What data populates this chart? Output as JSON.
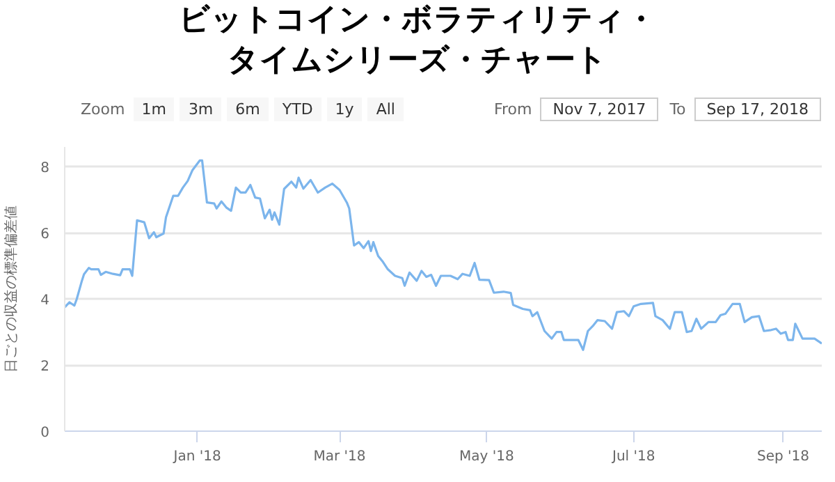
{
  "chart_data": {
    "type": "line",
    "title": "ビットコイン・ボラティリティ・タイムシリーズ・チャート",
    "ylabel": "日ごとの収益の標準偏差値",
    "annotations": [
      "Zoom",
      "1m",
      "3m",
      "6m",
      "YTD",
      "1y",
      "All",
      "From",
      "Nov 7, 2017",
      "To",
      "Sep 17, 2018"
    ],
    "x": [
      "2017-11-07",
      "2017-11-09",
      "2017-11-11",
      "2017-11-12",
      "2017-11-14",
      "2017-11-15",
      "2017-11-17",
      "2017-11-18",
      "2017-11-21",
      "2017-11-22",
      "2017-11-24",
      "2017-11-27",
      "2017-11-30",
      "2017-12-01",
      "2017-12-04",
      "2017-12-05",
      "2017-12-07",
      "2017-12-10",
      "2017-12-12",
      "2017-12-14",
      "2017-12-15",
      "2017-12-18",
      "2017-12-19",
      "2017-12-22",
      "2017-12-24",
      "2017-12-26",
      "2017-12-28",
      "2017-12-30",
      "2018-01-02",
      "2018-01-03",
      "2018-01-05",
      "2018-01-08",
      "2018-01-09",
      "2018-01-11",
      "2018-01-13",
      "2018-01-15",
      "2018-01-17",
      "2018-01-19",
      "2018-01-21",
      "2018-01-23",
      "2018-01-25",
      "2018-01-27",
      "2018-01-29",
      "2018-01-31",
      "2018-02-01",
      "2018-02-02",
      "2018-02-04",
      "2018-02-06",
      "2018-02-09",
      "2018-02-11",
      "2018-02-12",
      "2018-02-14",
      "2018-02-17",
      "2018-02-20",
      "2018-02-23",
      "2018-02-26",
      "2018-03-01",
      "2018-03-04",
      "2018-03-05",
      "2018-03-07",
      "2018-03-09",
      "2018-03-11",
      "2018-03-13",
      "2018-03-14",
      "2018-03-15",
      "2018-03-17",
      "2018-03-19",
      "2018-03-21",
      "2018-03-24",
      "2018-03-27",
      "2018-03-28",
      "2018-03-30",
      "2018-04-02",
      "2018-04-04",
      "2018-04-06",
      "2018-04-08",
      "2018-04-10",
      "2018-04-12",
      "2018-04-16",
      "2018-04-19",
      "2018-04-21",
      "2018-04-24",
      "2018-04-26",
      "2018-04-28",
      "2018-05-02",
      "2018-05-04",
      "2018-05-08",
      "2018-05-11",
      "2018-05-12",
      "2018-05-16",
      "2018-05-19",
      "2018-05-20",
      "2018-05-22",
      "2018-05-25",
      "2018-05-28",
      "2018-05-30",
      "2018-06-01",
      "2018-06-02",
      "2018-06-05",
      "2018-06-08",
      "2018-06-10",
      "2018-06-12",
      "2018-06-14",
      "2018-06-16",
      "2018-06-19",
      "2018-06-22",
      "2018-06-24",
      "2018-06-27",
      "2018-06-29",
      "2018-07-01",
      "2018-07-04",
      "2018-07-09",
      "2018-07-10",
      "2018-07-13",
      "2018-07-16",
      "2018-07-18",
      "2018-07-21",
      "2018-07-23",
      "2018-07-25",
      "2018-07-27",
      "2018-07-29",
      "2018-08-01",
      "2018-08-04",
      "2018-08-06",
      "2018-08-08",
      "2018-08-11",
      "2018-08-14",
      "2018-08-16",
      "2018-08-19",
      "2018-08-22",
      "2018-08-24",
      "2018-08-27",
      "2018-08-29",
      "2018-08-31",
      "2018-09-02",
      "2018-09-03",
      "2018-09-05",
      "2018-09-06",
      "2018-09-09",
      "2018-09-14",
      "2018-09-17"
    ],
    "series": [
      {
        "color": "#7cb5ec",
        "values": [
          3.75,
          3.9,
          3.8,
          4.0,
          4.52,
          4.75,
          4.94,
          4.9,
          4.9,
          4.73,
          4.82,
          4.76,
          4.72,
          4.9,
          4.9,
          4.7,
          6.38,
          6.32,
          5.84,
          6.02,
          5.87,
          5.98,
          6.47,
          7.12,
          7.12,
          7.37,
          7.57,
          7.9,
          8.19,
          8.19,
          6.92,
          6.89,
          6.74,
          6.95,
          6.77,
          6.67,
          7.37,
          7.22,
          7.22,
          7.45,
          7.07,
          7.04,
          6.44,
          6.7,
          6.4,
          6.62,
          6.25,
          7.33,
          7.55,
          7.37,
          7.67,
          7.34,
          7.6,
          7.22,
          7.37,
          7.49,
          7.3,
          6.92,
          6.74,
          5.62,
          5.72,
          5.54,
          5.75,
          5.45,
          5.72,
          5.3,
          5.12,
          4.9,
          4.7,
          4.63,
          4.4,
          4.8,
          4.55,
          4.85,
          4.67,
          4.73,
          4.4,
          4.7,
          4.7,
          4.6,
          4.76,
          4.7,
          5.09,
          4.58,
          4.57,
          4.19,
          4.22,
          4.18,
          3.82,
          3.7,
          3.66,
          3.48,
          3.6,
          3.03,
          2.8,
          3.0,
          3.0,
          2.76,
          2.76,
          2.76,
          2.46,
          3.03,
          3.18,
          3.36,
          3.33,
          3.1,
          3.6,
          3.63,
          3.48,
          3.78,
          3.85,
          3.88,
          3.48,
          3.36,
          3.1,
          3.6,
          3.6,
          3.0,
          3.03,
          3.4,
          3.1,
          3.3,
          3.3,
          3.51,
          3.55,
          3.85,
          3.85,
          3.3,
          3.45,
          3.48,
          3.03,
          3.06,
          3.1,
          2.95,
          3.0,
          2.76,
          2.76,
          3.25,
          2.8,
          2.8,
          2.65
        ]
      }
    ],
    "xlim": [
      "2017-11-07",
      "2018-09-17"
    ],
    "xticks": [
      {
        "value": "2018-01-01",
        "label": "Jan '18"
      },
      {
        "value": "2018-03-01",
        "label": "Mar '18"
      },
      {
        "value": "2018-05-01",
        "label": "May '18"
      },
      {
        "value": "2018-07-01",
        "label": "Jul '18"
      },
      {
        "value": "2018-09-01",
        "label": "Sep '18"
      }
    ],
    "ylim": [
      0,
      8.6
    ],
    "yticks": [
      0,
      2,
      4,
      6,
      8
    ],
    "grid": "y",
    "marker": "none",
    "line_style": "solid"
  }
}
